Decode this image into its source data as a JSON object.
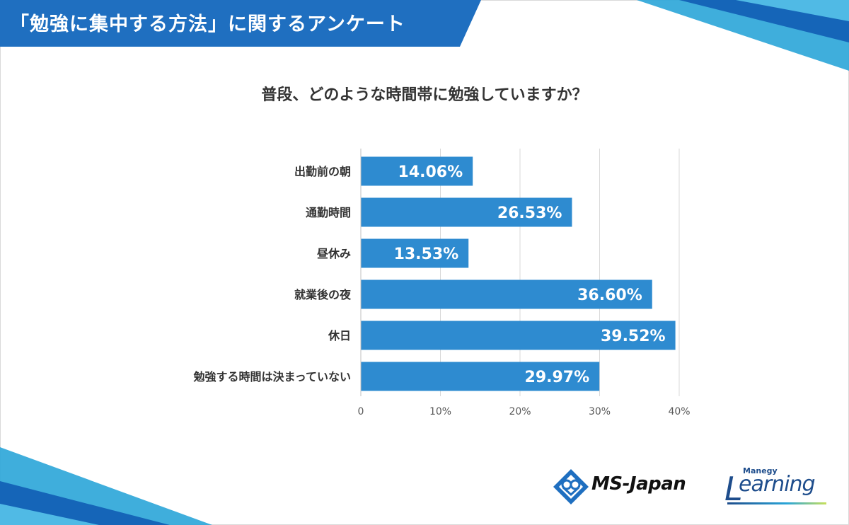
{
  "header": {
    "title": "「勉強に集中する方法」に関するアンケート"
  },
  "colors": {
    "bar": "#2e8bd0",
    "banner": "#1f6fc0",
    "accent_light": "#2aa5d8",
    "text": "#333333",
    "grid": "#d9d9d9"
  },
  "chart_data": {
    "type": "bar",
    "orientation": "horizontal",
    "title": "普段、どのような時間帯に勉強していますか？",
    "categories": [
      "出勤前の朝",
      "通勤時間",
      "昼休み",
      "就業後の夜",
      "休日",
      "勉強する時間は決まっていない"
    ],
    "values": [
      14.06,
      26.53,
      13.53,
      36.6,
      39.52,
      29.97
    ],
    "value_labels": [
      "14.06%",
      "26.53%",
      "13.53%",
      "36.60%",
      "39.52%",
      "29.97%"
    ],
    "xlim": [
      0,
      40
    ],
    "x_ticks": [
      "0",
      "10%",
      "20%",
      "30%",
      "40%"
    ],
    "x_tick_values": [
      0,
      10,
      20,
      30,
      40
    ],
    "grid": true
  },
  "logos": {
    "ms_japan": "MS-Japan",
    "manegy_small": "Manegy",
    "manegy_big": "earning",
    "manegy_initial": "L"
  },
  "icons": {
    "ms_japan_mark": "ms-japan-diamond-logo-icon"
  }
}
